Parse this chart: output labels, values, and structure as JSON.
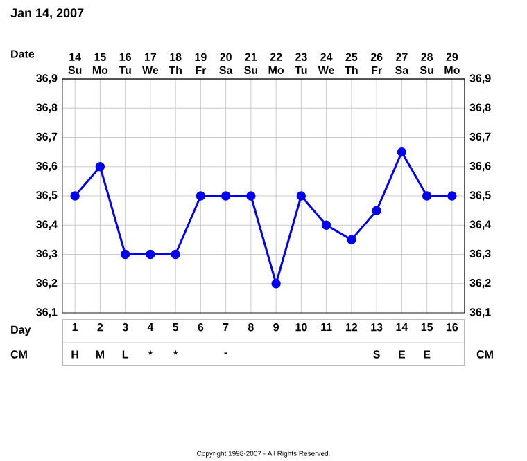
{
  "chart_data": {
    "type": "line",
    "title": "Jan 14, 2007",
    "xlabel": "Day",
    "x2label": "Date",
    "x": [
      1,
      2,
      3,
      4,
      5,
      6,
      7,
      8,
      9,
      10,
      11,
      12,
      13,
      14,
      15,
      16
    ],
    "xlim": [
      0.5,
      16.5
    ],
    "xticks": [
      1,
      2,
      3,
      4,
      5,
      6,
      7,
      8,
      9,
      10,
      11,
      12,
      13,
      14,
      15,
      16
    ],
    "x2lim": [
      13.5,
      29.5
    ],
    "x2ticks": [
      {
        "value": 14,
        "label": "14 Su"
      },
      {
        "value": 15,
        "label": "15 Mo"
      },
      {
        "value": 16,
        "label": "16 Tu"
      },
      {
        "value": 17,
        "label": "17 We"
      },
      {
        "value": 18,
        "label": "18 Th"
      },
      {
        "value": 19,
        "label": "19 Fr"
      },
      {
        "value": 20,
        "label": "20 Sa"
      },
      {
        "value": 21,
        "label": "21 Su"
      },
      {
        "value": 22,
        "label": "22 Mo"
      },
      {
        "value": 23,
        "label": "23 Tu"
      },
      {
        "value": 24,
        "label": "24 We"
      },
      {
        "value": 25,
        "label": "25 Th"
      },
      {
        "value": 26,
        "label": "26 Fr"
      },
      {
        "value": 27,
        "label": "27 Sa"
      },
      {
        "value": 28,
        "label": "28 Su"
      },
      {
        "value": 29,
        "label": "29 Mo"
      }
    ],
    "series": [
      {
        "color": "#0000ee",
        "values": [
          36.5,
          36.6,
          36.3,
          36.3,
          36.3,
          36.5,
          36.5,
          36.5,
          36.2,
          36.5,
          36.4,
          36.35,
          36.45,
          36.65,
          36.5,
          36.5
        ]
      }
    ],
    "ylim": [
      36.1,
      36.9
    ],
    "yticks": [
      {
        "value": 36.1,
        "label": "36,1"
      },
      {
        "value": 36.2,
        "label": "36,2"
      },
      {
        "value": 36.3,
        "label": "36,3"
      },
      {
        "value": 36.4,
        "label": "36,4"
      },
      {
        "value": 36.5,
        "label": "36,5"
      },
      {
        "value": 36.6,
        "label": "36,6"
      },
      {
        "value": 36.7,
        "label": "36,7"
      },
      {
        "value": 36.8,
        "label": "36,8"
      },
      {
        "value": 36.9,
        "label": "36,9"
      }
    ],
    "y2lim": [
      36.1,
      36.9
    ],
    "y2ticks": [
      {
        "value": 36.1,
        "label": "36,1"
      },
      {
        "value": 36.2,
        "label": "36,2"
      },
      {
        "value": 36.3,
        "label": "36,3"
      },
      {
        "value": 36.4,
        "label": "36,4"
      },
      {
        "value": 36.5,
        "label": "36,5"
      },
      {
        "value": 36.6,
        "label": "36,6"
      },
      {
        "value": 36.7,
        "label": "36,7"
      },
      {
        "value": 36.8,
        "label": "36,8"
      },
      {
        "value": 36.9,
        "label": "36,9"
      }
    ],
    "grid": true,
    "marker": "circle",
    "line_style": "solid",
    "annotations": [
      "CM",
      "CM",
      "H",
      "M",
      "L",
      "*",
      "*",
      "-",
      "S",
      "E",
      "E",
      "Copyright 1998-2007 - All Rights Reserved."
    ]
  }
}
